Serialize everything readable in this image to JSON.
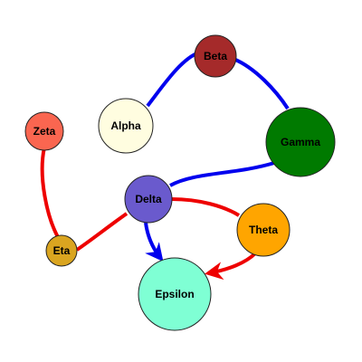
{
  "colors": {
    "blue_edge": "#0000ee",
    "red_edge": "#ee0000",
    "node_stroke": "#222222"
  },
  "nodes": {
    "beta": {
      "label": "Beta",
      "fill": "#a52a2a"
    },
    "alpha": {
      "label": "Alpha",
      "fill": "#fffde0"
    },
    "gamma": {
      "label": "Gamma",
      "fill": "#007a00"
    },
    "zeta": {
      "label": "Zeta",
      "fill": "#fa6650"
    },
    "delta": {
      "label": "Delta",
      "fill": "#6a5acd"
    },
    "theta": {
      "label": "Theta",
      "fill": "#ffa500"
    },
    "eta": {
      "label": "Eta",
      "fill": "#daa520"
    },
    "epsilon": {
      "label": "Epsilon",
      "fill": "#7fffd4"
    }
  },
  "edges": [
    {
      "from": "Alpha",
      "to": "Beta",
      "color": "blue",
      "arrow": false
    },
    {
      "from": "Beta",
      "to": "Gamma",
      "color": "blue",
      "arrow": false
    },
    {
      "from": "Gamma",
      "to": "Delta",
      "color": "blue",
      "arrow": false
    },
    {
      "from": "Delta",
      "to": "Epsilon",
      "color": "blue",
      "arrow": true
    },
    {
      "from": "Delta",
      "to": "Theta",
      "color": "red",
      "arrow": false
    },
    {
      "from": "Delta",
      "to": "Eta",
      "color": "red",
      "arrow": false
    },
    {
      "from": "Zeta",
      "to": "Eta",
      "color": "red",
      "arrow": false
    },
    {
      "from": "Theta",
      "to": "Epsilon",
      "color": "red",
      "arrow": true
    }
  ]
}
